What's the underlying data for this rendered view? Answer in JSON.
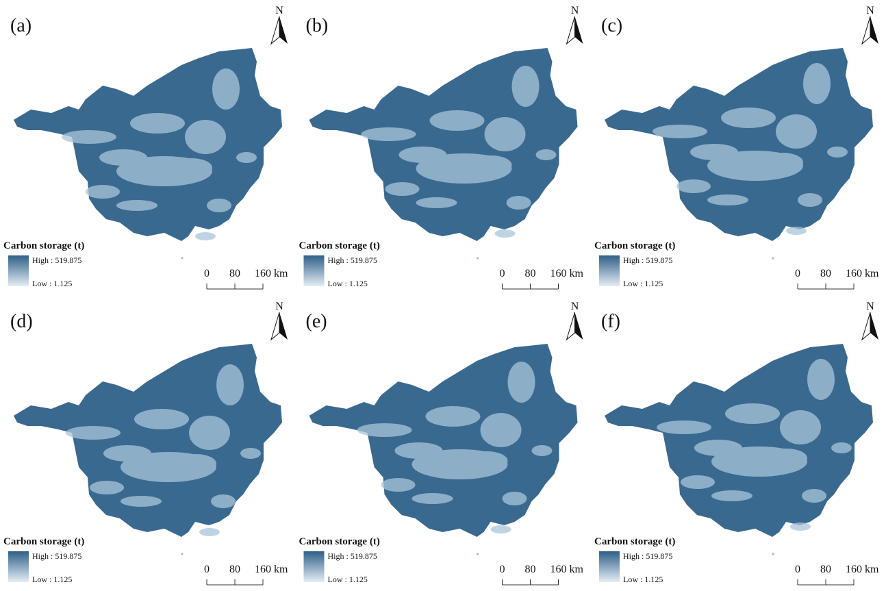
{
  "panels": [
    {
      "label": "(a)",
      "north": "N",
      "legend_title": "Carbon storage (t)",
      "legend_high": "High : 519.875",
      "legend_low": "Low : 1.125",
      "scale_labels": [
        "0",
        "80",
        "160 km"
      ]
    },
    {
      "label": "(b)",
      "north": "N",
      "legend_title": "Carbon storage (t)",
      "legend_high": "High : 519.875",
      "legend_low": "Low : 1.125",
      "scale_labels": [
        "0",
        "80",
        "160 km"
      ]
    },
    {
      "label": "(c)",
      "north": "N",
      "legend_title": "Carbon storage (t)",
      "legend_high": "High : 519.875",
      "legend_low": "Low : 1.125",
      "scale_labels": [
        "0",
        "80",
        "160 km"
      ]
    },
    {
      "label": "(d)",
      "north": "N",
      "legend_title": "Carbon storage (t)",
      "legend_high": "High : 519.875",
      "legend_low": "Low : 1.125",
      "scale_labels": [
        "0",
        "80",
        "160 km"
      ]
    },
    {
      "label": "(e)",
      "north": "N",
      "legend_title": "Carbon storage (t)",
      "legend_high": "High : 519.875",
      "legend_low": "Low : 1.125",
      "scale_labels": [
        "0",
        "80",
        "160 km"
      ]
    },
    {
      "label": "(f)",
      "north": "N",
      "legend_title": "Carbon storage (t)",
      "legend_high": "High : 519.875",
      "legend_low": "Low : 1.125",
      "scale_labels": [
        "0",
        "80",
        "160 km"
      ]
    }
  ]
}
